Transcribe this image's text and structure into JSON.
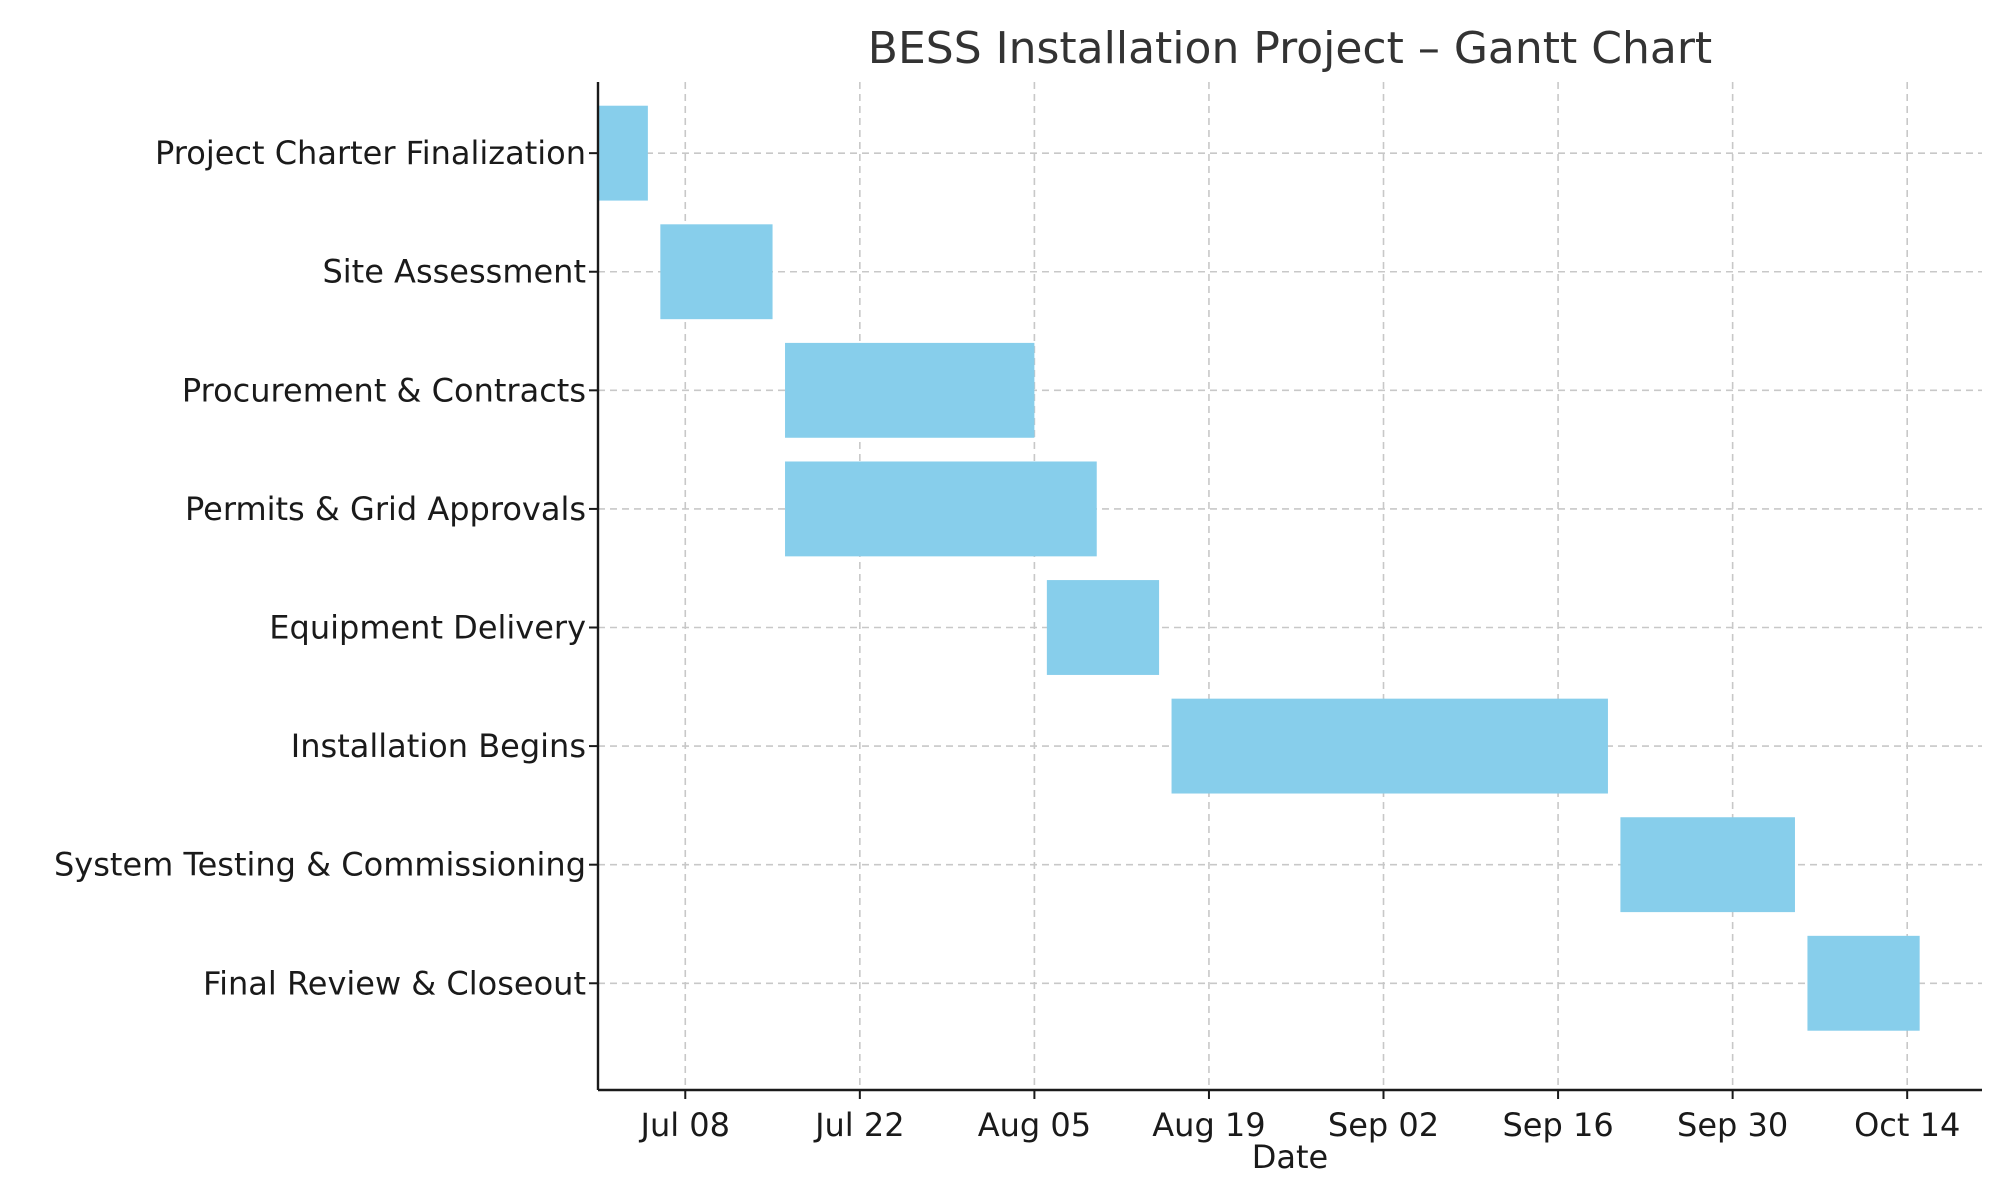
{
  "chart_data": {
    "type": "gantt",
    "title": "BESS Installation Project – Gantt Chart",
    "xlabel": "Date",
    "ylabel": "",
    "xlim": [
      "2024-07-01",
      "2024-10-20"
    ],
    "x_ticks": [
      {
        "date": "2024-07-08",
        "label": "Jul 08"
      },
      {
        "date": "2024-07-22",
        "label": "Jul 22"
      },
      {
        "date": "2024-08-05",
        "label": "Aug 05"
      },
      {
        "date": "2024-08-19",
        "label": "Aug 19"
      },
      {
        "date": "2024-09-02",
        "label": "Sep 02"
      },
      {
        "date": "2024-09-16",
        "label": "Sep 16"
      },
      {
        "date": "2024-09-30",
        "label": "Sep 30"
      },
      {
        "date": "2024-10-14",
        "label": "Oct 14"
      }
    ],
    "grid": true,
    "bar_color": "#87CEEB",
    "tasks": [
      {
        "name": "Project Charter Finalization",
        "start": "2024-07-01",
        "end": "2024-07-05"
      },
      {
        "name": "Site Assessment",
        "start": "2024-07-06",
        "end": "2024-07-15"
      },
      {
        "name": "Procurement & Contracts",
        "start": "2024-07-16",
        "end": "2024-08-05"
      },
      {
        "name": "Permits & Grid Approvals",
        "start": "2024-07-16",
        "end": "2024-08-10"
      },
      {
        "name": "Equipment Delivery",
        "start": "2024-08-06",
        "end": "2024-08-15"
      },
      {
        "name": "Installation Begins",
        "start": "2024-08-16",
        "end": "2024-09-20"
      },
      {
        "name": "System Testing & Commissioning",
        "start": "2024-09-21",
        "end": "2024-10-05"
      },
      {
        "name": "Final Review & Closeout",
        "start": "2024-10-06",
        "end": "2024-10-15"
      }
    ]
  }
}
